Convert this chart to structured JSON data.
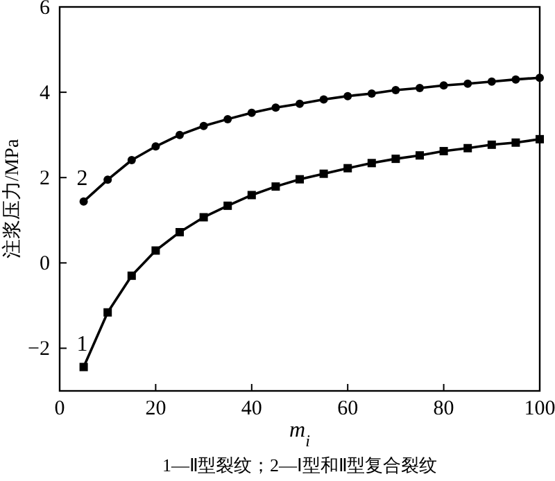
{
  "chart_data": {
    "type": "line",
    "xlabel": "m$_{i}$",
    "ylabel": "注浆压力/MPa",
    "annotations": [
      "1—Ⅱ型裂纹；2—Ⅰ型和Ⅱ型复合裂纹"
    ],
    "x": [
      5,
      10,
      15,
      20,
      25,
      30,
      35,
      40,
      45,
      50,
      55,
      60,
      65,
      70,
      75,
      80,
      85,
      90,
      95,
      100
    ],
    "series": [
      {
        "name": "1",
        "color": "#000000",
        "marker": "square",
        "values": [
          -2.44,
          -1.16,
          -0.3,
          0.29,
          0.72,
          1.07,
          1.34,
          1.59,
          1.79,
          1.96,
          2.09,
          2.22,
          2.34,
          2.44,
          2.52,
          2.62,
          2.69,
          2.77,
          2.82,
          2.9
        ]
      },
      {
        "name": "2",
        "color": "#000000",
        "marker": "circle",
        "values": [
          1.44,
          1.95,
          2.41,
          2.73,
          3.0,
          3.21,
          3.37,
          3.52,
          3.64,
          3.73,
          3.83,
          3.91,
          3.97,
          4.05,
          4.1,
          4.16,
          4.2,
          4.25,
          4.3,
          4.34
        ]
      }
    ],
    "xlim": [
      0,
      100
    ],
    "xticks": [
      0,
      20,
      40,
      60,
      80,
      100
    ],
    "ylim": [
      -3,
      6
    ],
    "yticks": [
      -2,
      0,
      2,
      4,
      6
    ],
    "grid": false,
    "line_style": "solid"
  }
}
